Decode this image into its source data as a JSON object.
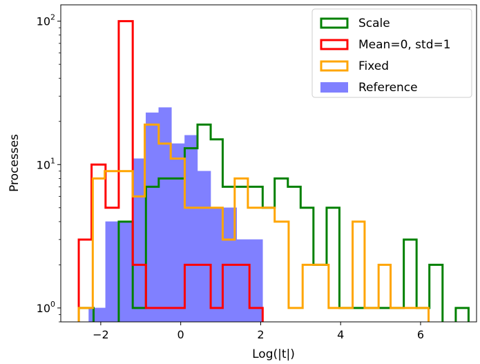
{
  "chart_data": {
    "type": "histogram",
    "title": "",
    "xlabel": "Log(|t|)",
    "ylabel": "Processes",
    "xlim": [
      -3.0,
      7.4
    ],
    "ylim": [
      0.8,
      130
    ],
    "yscale": "log",
    "xticks": [
      -2,
      0,
      2,
      4,
      6
    ],
    "xtick_labels": [
      "−2",
      "0",
      "2",
      "4",
      "6"
    ],
    "yticks": [
      1,
      10,
      100
    ],
    "ytick_labels": [
      {
        "base": "10",
        "exp": "0"
      },
      {
        "base": "10",
        "exp": "1"
      },
      {
        "base": "10",
        "exp": "2"
      }
    ],
    "grid": false,
    "legend_position": "top-right",
    "series": [
      {
        "name": "Scale",
        "style": "step",
        "color": "#008000",
        "edges": [
          -2.55,
          -2.18,
          -1.55,
          -1.2,
          -0.87,
          -0.55,
          -0.23,
          0.1,
          0.42,
          0.75,
          1.05,
          1.4,
          1.72,
          2.05,
          2.35,
          2.68,
          3.0,
          3.32,
          3.65,
          3.97,
          4.3,
          4.62,
          4.93,
          5.25,
          5.58,
          5.9,
          6.22,
          6.55,
          6.88,
          7.2
        ],
        "values": [
          1,
          0.7,
          4,
          1,
          7,
          8,
          8,
          13,
          19,
          15,
          7,
          7,
          7,
          5,
          8,
          7,
          5,
          2,
          5,
          1,
          1,
          1,
          1,
          1,
          3,
          1,
          2,
          0.7,
          1
        ]
      },
      {
        "name": "Mean=0, std=1",
        "style": "step",
        "color": "#ff0000",
        "edges": [
          -2.55,
          -2.23,
          -1.88,
          -1.55,
          -1.2,
          -0.87,
          -0.55,
          -0.23,
          0.1,
          0.42,
          0.75,
          1.05,
          1.4,
          1.72,
          2.05,
          2.35
        ],
        "values": [
          3,
          10,
          5,
          100,
          2,
          1,
          1,
          1,
          2,
          2,
          1,
          2,
          2,
          1,
          0.7
        ]
      },
      {
        "name": "Fixed",
        "style": "step",
        "color": "#ffa500",
        "edges": [
          -2.55,
          -2.2,
          -1.9,
          -1.55,
          -1.2,
          -0.9,
          -0.55,
          -0.25,
          0.1,
          0.42,
          0.75,
          1.05,
          1.35,
          1.68,
          2.05,
          2.35,
          2.7,
          3.05,
          3.35,
          3.7,
          4.05,
          4.3,
          4.6,
          4.95,
          5.25,
          5.6,
          5.95,
          6.2
        ],
        "values": [
          1,
          8,
          9,
          9,
          6,
          19,
          14,
          11,
          5,
          5,
          5,
          3,
          8,
          5,
          5,
          4,
          1,
          2,
          2,
          1,
          1,
          4,
          1,
          2,
          1,
          1,
          1
        ]
      },
      {
        "name": "Reference",
        "style": "bar",
        "color": "#8080ff",
        "edges": [
          -2.3,
          -1.88,
          -1.55,
          -1.2,
          -0.87,
          -0.55,
          -0.23,
          0.1,
          0.42,
          0.75,
          1.05,
          1.4,
          1.72,
          2.05
        ],
        "values": [
          1,
          4,
          4,
          11,
          23,
          25,
          14,
          16,
          9,
          5,
          5,
          3,
          3
        ]
      }
    ]
  }
}
